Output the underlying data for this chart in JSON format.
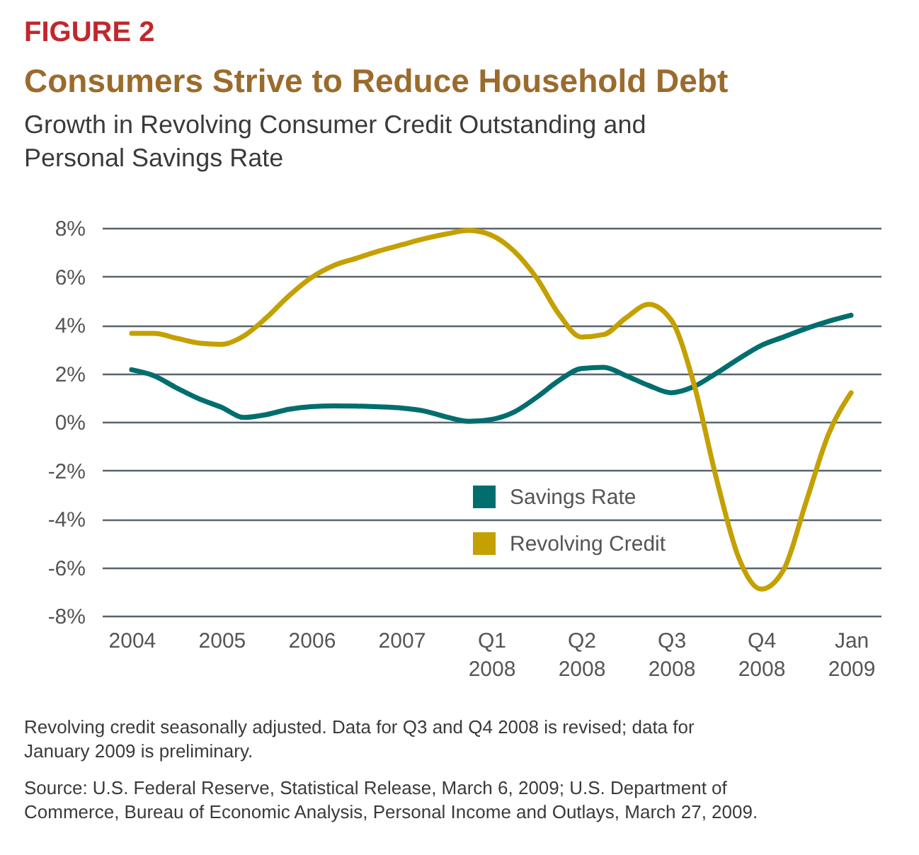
{
  "chart_data": {
    "type": "line",
    "title": "Consumers Strive to Reduce Household Debt",
    "subtitle": "Growth in Revolving Consumer Credit Outstanding and Personal Savings Rate",
    "annotations": [
      "FIGURE 2",
      "Revolving credit seasonally adjusted. Data for Q3 and Q4 2008 is revised; data for January 2009 is preliminary.",
      "Source: U.S. Federal Reserve, Statistical Release, March 6, 2009; U.S. Department of Commerce, Bureau of Economic Analysis, Personal Income and Outlays, March 27, 2009."
    ],
    "categories": [
      "2004",
      null,
      null,
      null,
      "2005",
      null,
      null,
      null,
      "2006",
      null,
      null,
      null,
      "2007",
      null,
      null,
      null,
      "Q1 2008",
      null,
      null,
      null,
      "Q2 2008",
      null,
      null,
      null,
      "Q3 2008",
      null,
      null,
      null,
      "Q4 2008",
      null,
      null,
      null,
      "Jan 2009"
    ],
    "ylim": [
      -8,
      8
    ],
    "yticks": [
      {
        "value": 8,
        "label": "8%"
      },
      {
        "value": 6,
        "label": "6%"
      },
      {
        "value": 4,
        "label": "4%"
      },
      {
        "value": 2,
        "label": "2%"
      },
      {
        "value": 0,
        "label": "0%"
      },
      {
        "value": -2,
        "label": "-2%"
      },
      {
        "value": -4,
        "label": "-4%"
      },
      {
        "value": -6,
        "label": "-6%"
      },
      {
        "value": -8,
        "label": "-8%"
      }
    ],
    "grid": "y",
    "legend": "center",
    "marker": "none",
    "line_style": "solid",
    "series": [
      {
        "name": "Savings Rate",
        "color": "#006e6e",
        "values": [
          2.15,
          1.9,
          1.4,
          0.95,
          0.6,
          0.18,
          0.3,
          0.52,
          0.63,
          0.66,
          0.65,
          0.62,
          0.57,
          0.45,
          0.2,
          0.02,
          0.1,
          0.4,
          1.0,
          1.7,
          2.2,
          2.25,
          1.9,
          1.5,
          1.2,
          1.45,
          2.0,
          2.6,
          3.15,
          3.5,
          3.85,
          4.15,
          4.4
        ]
      },
      {
        "name": "Revolving Credit",
        "color": "#c4a000",
        "values": [
          3.65,
          3.65,
          3.45,
          3.25,
          3.2,
          3.55,
          4.3,
          5.2,
          5.95,
          6.45,
          6.75,
          7.05,
          7.3,
          7.55,
          7.75,
          7.9,
          7.7,
          7.05,
          5.95,
          4.45,
          3.5,
          3.6,
          4.3,
          4.85,
          4.2,
          1.6,
          -2.3,
          -5.6,
          -6.9,
          -6.1,
          -3.3,
          -0.5,
          1.2
        ]
      }
    ]
  }
}
